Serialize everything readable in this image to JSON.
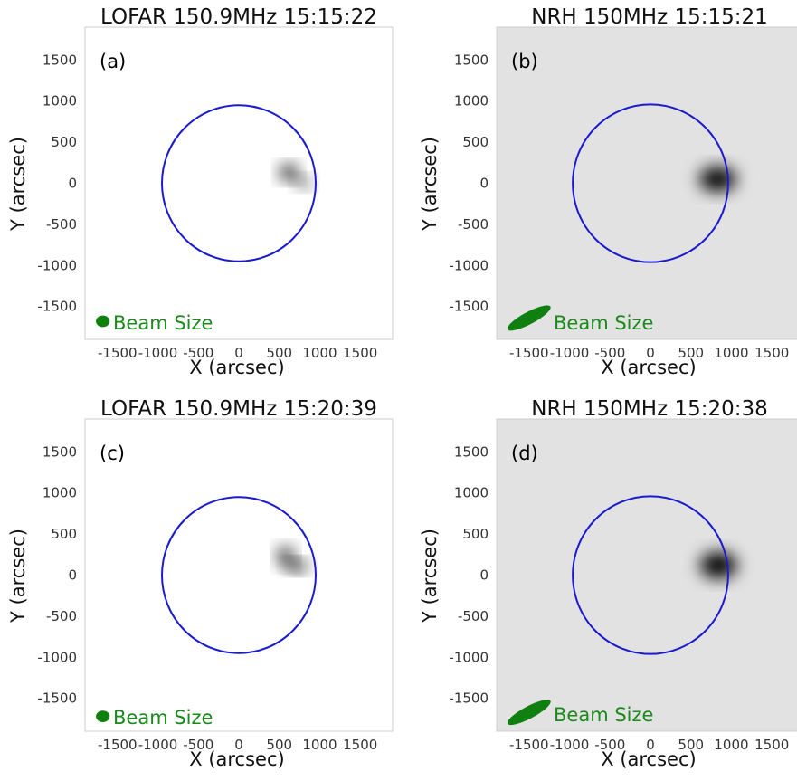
{
  "colors": {
    "limb": "#1a1ad0",
    "beam": "#0f7f0f",
    "beam_text": "#1a8a1a"
  },
  "chart_data": [
    {
      "type": "heatmap",
      "title": "LOFAR 150.9MHz 15:15:22",
      "panel_label": "(a)",
      "xlabel": "X (arcsec)",
      "ylabel": "Y (arcsec)",
      "xlim": [
        -1900,
        1900
      ],
      "ylim": [
        -1900,
        1900
      ],
      "xticks": [
        -1500,
        -1000,
        -500,
        0,
        500,
        1000,
        1500
      ],
      "yticks": [
        -1500,
        -1000,
        -500,
        0,
        500,
        1000,
        1500
      ],
      "xtick_labels": [
        "-1500",
        "-1000",
        "-500",
        "0",
        "500",
        "1000",
        "1500"
      ],
      "ytick_labels": [
        "1500",
        "1000",
        "500",
        "0",
        "-500",
        "-1000",
        "-1500"
      ],
      "limb_radius": 950,
      "background": "#ffffff",
      "legend": "Beam Size",
      "beam": {
        "shape": "ellipse",
        "x": -1680,
        "y": -1680,
        "semi_major": 85,
        "semi_minor": 70,
        "angle": 0
      },
      "sources": [
        {
          "x": 620,
          "y": 130,
          "sx": 110,
          "sy": 90,
          "amp": 1.0
        },
        {
          "x": 800,
          "y": 10,
          "sx": 100,
          "sy": 70,
          "amp": 0.6
        }
      ]
    },
    {
      "type": "heatmap",
      "title": "NRH 150MHz 15:15:21",
      "panel_label": "(b)",
      "xlabel": "X (arcsec)",
      "ylabel": "Y (arcsec)",
      "xlim": [
        -1900,
        1900
      ],
      "ylim": [
        -1900,
        1900
      ],
      "xticks": [
        -1500,
        -1000,
        -500,
        0,
        500,
        1000,
        1500
      ],
      "yticks": [
        -1500,
        -1000,
        -500,
        0,
        500,
        1000,
        1500
      ],
      "xtick_labels": [
        "-1500",
        "-1000",
        "-500",
        "0",
        "500",
        "1000",
        "1500"
      ],
      "ytick_labels": [
        "1500",
        "1000",
        "500",
        "0",
        "-500",
        "-1000",
        "-1500"
      ],
      "limb_radius": 960,
      "background": "#e2e2e2",
      "legend": "Beam Size",
      "beam": {
        "shape": "ellipse",
        "x": -1500,
        "y": -1640,
        "semi_major": 300,
        "semi_minor": 75,
        "angle": 28
      },
      "sources": [
        {
          "x": 830,
          "y": 50,
          "sx": 230,
          "sy": 150,
          "amp": 1.0
        }
      ]
    },
    {
      "type": "heatmap",
      "title": "LOFAR 150.9MHz 15:20:39",
      "panel_label": "(c)",
      "xlabel": "X (arcsec)",
      "ylabel": "Y (arcsec)",
      "xlim": [
        -1900,
        1900
      ],
      "ylim": [
        -1900,
        1900
      ],
      "xticks": [
        -1500,
        -1000,
        -500,
        0,
        500,
        1000,
        1500
      ],
      "yticks": [
        -1500,
        -1000,
        -500,
        0,
        500,
        1000,
        1500
      ],
      "xtick_labels": [
        "-1500",
        "-1000",
        "-500",
        "0",
        "500",
        "1000",
        "1500"
      ],
      "ytick_labels": [
        "1500",
        "1000",
        "500",
        "0",
        "-500",
        "-1000",
        "-1500"
      ],
      "limb_radius": 950,
      "background": "#ffffff",
      "legend": "Beam Size",
      "beam": {
        "shape": "ellipse",
        "x": -1680,
        "y": -1720,
        "semi_major": 85,
        "semi_minor": 70,
        "angle": 0
      },
      "sources": [
        {
          "x": 580,
          "y": 230,
          "sx": 100,
          "sy": 110,
          "amp": 0.9
        },
        {
          "x": 720,
          "y": 110,
          "sx": 130,
          "sy": 70,
          "amp": 0.9
        }
      ]
    },
    {
      "type": "heatmap",
      "title": "NRH 150MHz 15:20:38",
      "panel_label": "(d)",
      "xlabel": "X (arcsec)",
      "ylabel": "Y (arcsec)",
      "xlim": [
        -1900,
        1900
      ],
      "ylim": [
        -1900,
        1900
      ],
      "xticks": [
        -1500,
        -1000,
        -500,
        0,
        500,
        1000,
        1500
      ],
      "yticks": [
        -1500,
        -1000,
        -500,
        0,
        500,
        1000,
        1500
      ],
      "xtick_labels": [
        "-1500",
        "-1000",
        "-500",
        "0",
        "500",
        "1000",
        "1500"
      ],
      "ytick_labels": [
        "1500",
        "1000",
        "500",
        "0",
        "-500",
        "-1000",
        "-1500"
      ],
      "limb_radius": 960,
      "background": "#e2e2e2",
      "legend": "Beam Size",
      "beam": {
        "shape": "ellipse",
        "x": -1500,
        "y": -1670,
        "semi_major": 300,
        "semi_minor": 75,
        "angle": 28
      },
      "sources": [
        {
          "x": 840,
          "y": 120,
          "sx": 230,
          "sy": 160,
          "amp": 1.0
        }
      ]
    }
  ]
}
